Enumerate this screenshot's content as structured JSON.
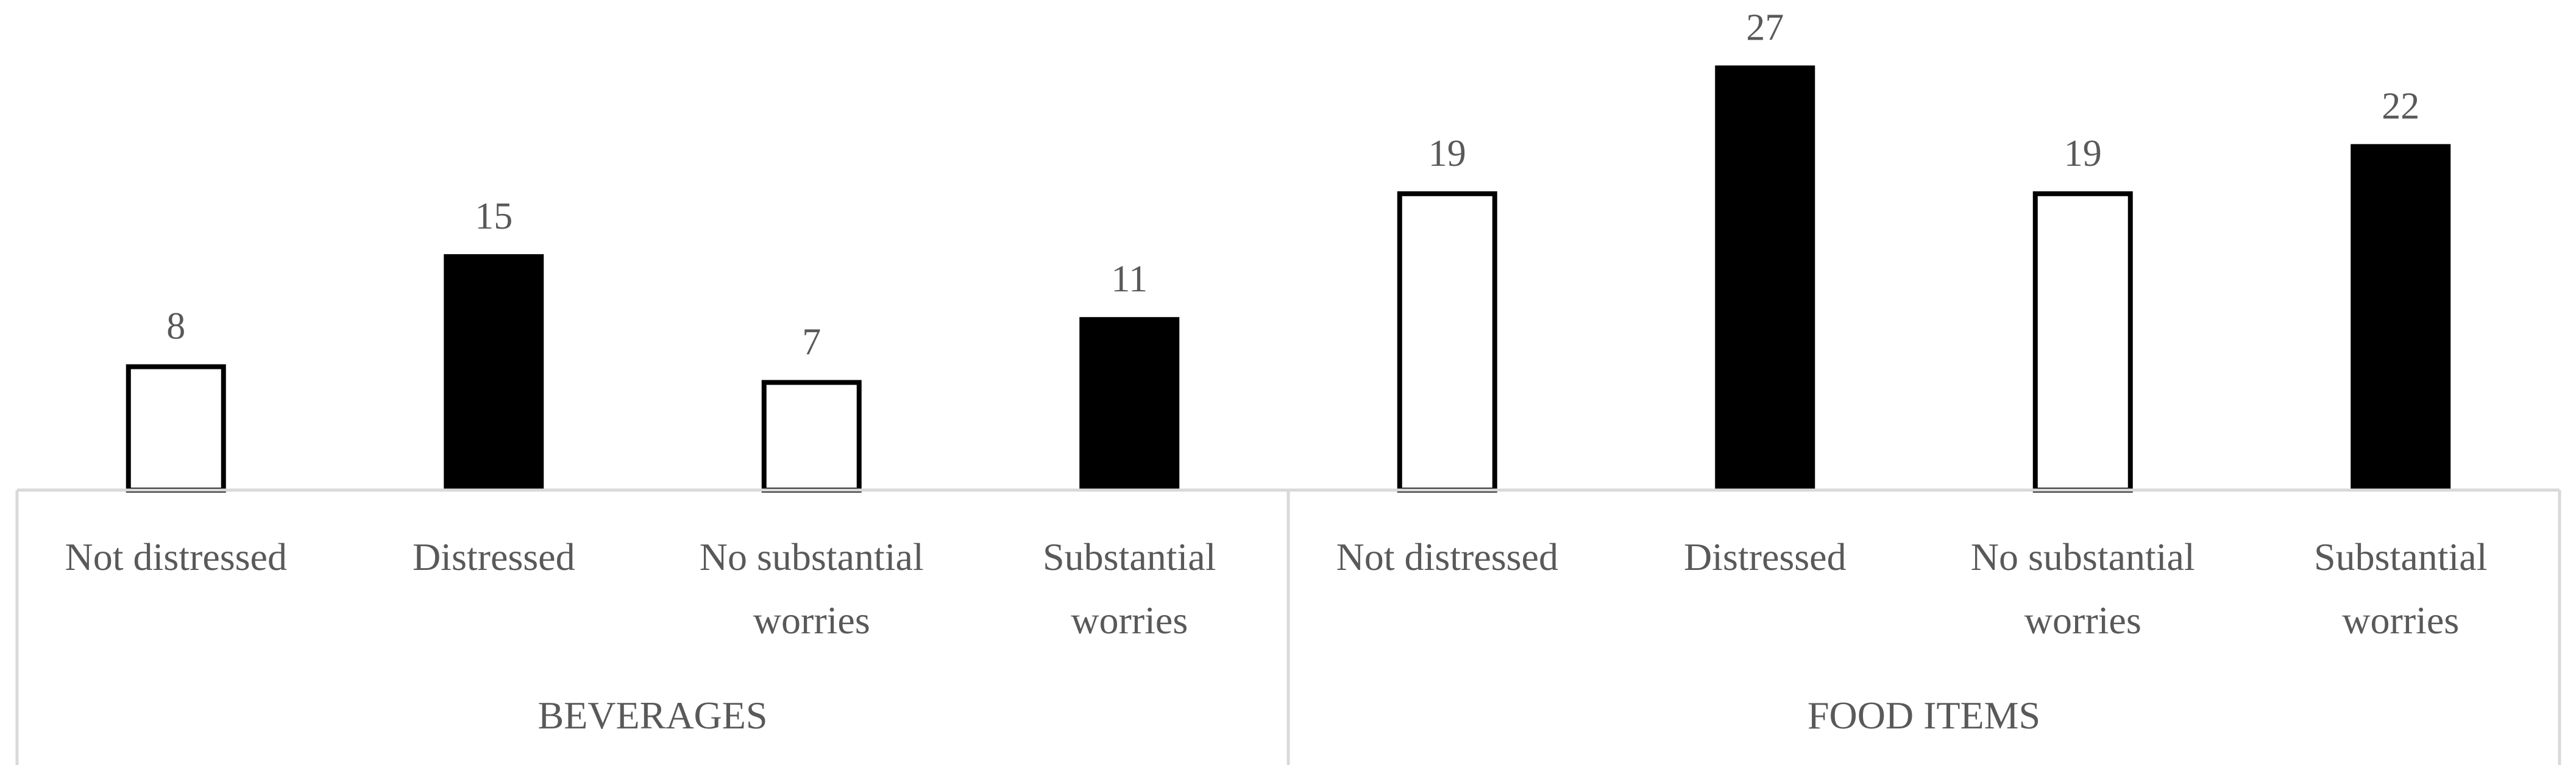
{
  "chart_data": {
    "type": "bar",
    "groups": [
      {
        "label": "BEVERAGES",
        "categories": [
          {
            "label": [
              "Not distressed"
            ],
            "value": 8,
            "style": "hollow"
          },
          {
            "label": [
              "Distressed"
            ],
            "value": 15,
            "style": "filled"
          },
          {
            "label": [
              "No substantial",
              "worries"
            ],
            "value": 7,
            "style": "hollow"
          },
          {
            "label": [
              "Substantial",
              "worries"
            ],
            "value": 11,
            "style": "filled"
          }
        ]
      },
      {
        "label": "FOOD ITEMS",
        "categories": [
          {
            "label": [
              "Not distressed"
            ],
            "value": 19,
            "style": "hollow"
          },
          {
            "label": [
              "Distressed"
            ],
            "value": 27,
            "style": "filled"
          },
          {
            "label": [
              "No substantial",
              "worries"
            ],
            "value": 19,
            "style": "hollow"
          },
          {
            "label": [
              "Substantial",
              "worries"
            ],
            "value": 22,
            "style": "filled"
          }
        ]
      }
    ],
    "ylim": [
      0,
      27
    ],
    "grid": false,
    "legend": "none",
    "colors": {
      "bar": "#000000",
      "hollow_fill": "#ffffff",
      "axis": "#d9d9d9",
      "text": "#595959"
    }
  }
}
